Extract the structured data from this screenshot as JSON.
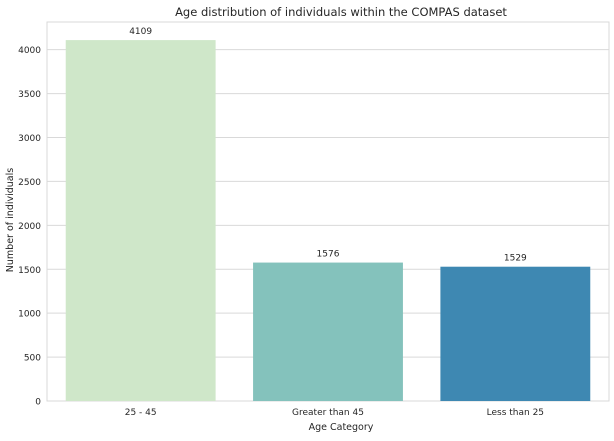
{
  "chart_data": {
    "type": "bar",
    "title": "Age distribution of individuals within the COMPAS dataset",
    "xlabel": "Age Category",
    "ylabel": "Number of individuals",
    "categories": [
      "25 - 45",
      "Greater than 45",
      "Less than 25"
    ],
    "values": [
      4109,
      1576,
      1529
    ],
    "value_labels": [
      "4109",
      "1576",
      "1529"
    ],
    "colors": [
      "#cfe7c9",
      "#84c2bc",
      "#3e88b2"
    ],
    "ylim": [
      0,
      4315
    ],
    "yticks": [
      0,
      500,
      1000,
      1500,
      2000,
      2500,
      3000,
      3500,
      4000
    ],
    "ytick_labels": [
      "0",
      "500",
      "1000",
      "1500",
      "2000",
      "2500",
      "3000",
      "3500",
      "4000"
    ],
    "grid": "horizontal",
    "legend": "none"
  }
}
